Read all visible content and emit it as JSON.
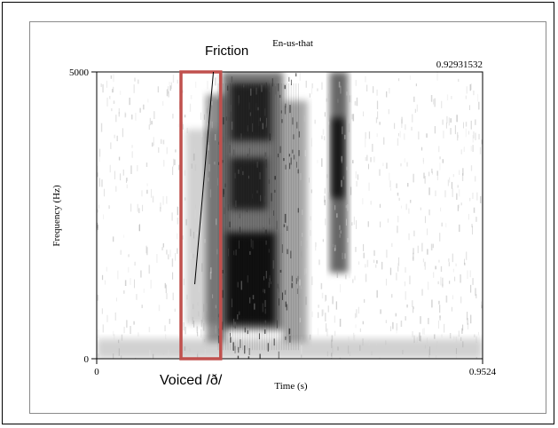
{
  "chart_data": {
    "type": "heatmap",
    "title": "En-us-that",
    "xlabel": "Time (s)",
    "ylabel": "Frequency (Hz)",
    "xlim": [
      0,
      0.9524
    ],
    "ylim": [
      0,
      5000
    ],
    "x_tick_labels": [
      "0",
      "0.9524"
    ],
    "y_tick_labels": [
      "0",
      "5000"
    ],
    "cursor_time_label": "0.92931532",
    "annotations": {
      "friction_label": "Friction",
      "voiced_label": "Voiced /ð/",
      "voiced_region_time": [
        0.208,
        0.306
      ],
      "voiced_region_freq": [
        0,
        5000
      ],
      "box_color": "#c0504d",
      "friction_pointer_from": [
        0.288,
        5000
      ],
      "friction_pointer_to": [
        0.242,
        1300
      ]
    },
    "colormap": "grayscale",
    "grid": false
  }
}
